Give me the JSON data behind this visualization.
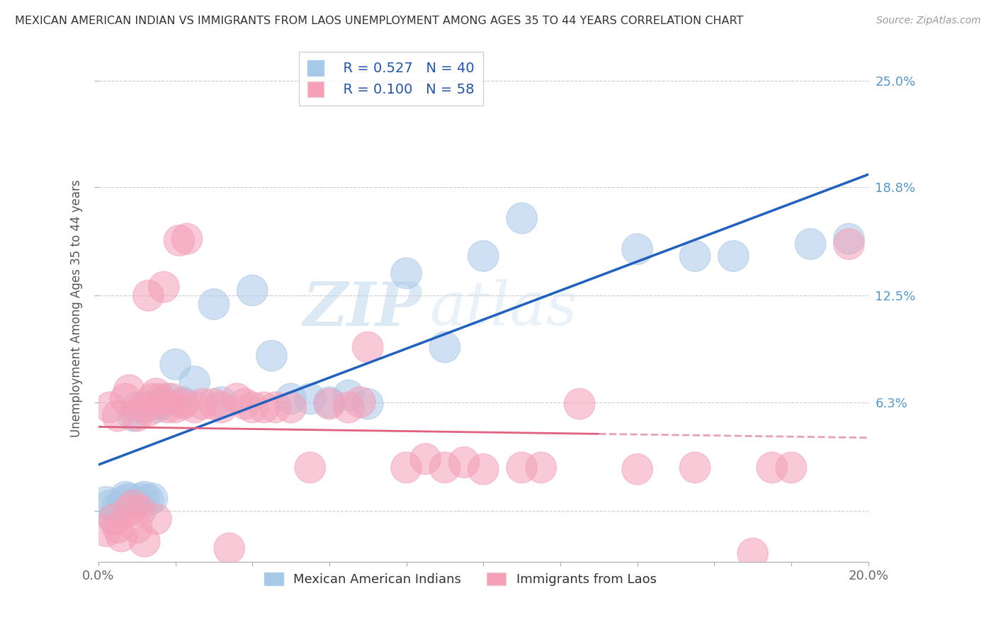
{
  "title": "MEXICAN AMERICAN INDIAN VS IMMIGRANTS FROM LAOS UNEMPLOYMENT AMONG AGES 35 TO 44 YEARS CORRELATION CHART",
  "source": "Source: ZipAtlas.com",
  "ylabel": "Unemployment Among Ages 35 to 44 years",
  "xlim": [
    0.0,
    0.2
  ],
  "ylim": [
    -0.03,
    0.265
  ],
  "plot_ylim": [
    0.0,
    0.25
  ],
  "ytick_vals": [
    0.0,
    0.063,
    0.125,
    0.188,
    0.25
  ],
  "ytick_labels": [
    "",
    "6.3%",
    "12.5%",
    "18.8%",
    "25.0%"
  ],
  "legend_R1": "R = 0.527",
  "legend_N1": "N = 40",
  "legend_R2": "R = 0.100",
  "legend_N2": "N = 58",
  "color_blue": "#a8c8e8",
  "color_pink": "#f4a0b8",
  "color_blue_line": "#2060c0",
  "color_pink_solid": "#e06080",
  "color_pink_dashed": "#e8a0b8",
  "watermark_color": "#c8dff0",
  "blue_x": [
    0.002,
    0.003,
    0.004,
    0.005,
    0.006,
    0.007,
    0.007,
    0.008,
    0.009,
    0.01,
    0.01,
    0.011,
    0.012,
    0.013,
    0.014,
    0.015,
    0.016,
    0.017,
    0.018,
    0.02,
    0.022,
    0.025,
    0.03,
    0.032,
    0.04,
    0.045,
    0.05,
    0.055,
    0.06,
    0.065,
    0.07,
    0.08,
    0.09,
    0.1,
    0.11,
    0.14,
    0.155,
    0.165,
    0.185,
    0.195
  ],
  "blue_y": [
    0.005,
    0.003,
    -0.005,
    0.002,
    0.004,
    0.006,
    0.008,
    0.007,
    0.055,
    0.005,
    0.06,
    0.007,
    0.008,
    0.006,
    0.007,
    0.06,
    0.062,
    0.063,
    0.065,
    0.085,
    0.063,
    0.075,
    0.12,
    0.063,
    0.128,
    0.09,
    0.065,
    0.065,
    0.063,
    0.067,
    0.062,
    0.138,
    0.095,
    0.148,
    0.17,
    0.152,
    0.148,
    0.148,
    0.155,
    0.158
  ],
  "pink_x": [
    0.002,
    0.003,
    0.004,
    0.005,
    0.005,
    0.006,
    0.007,
    0.008,
    0.008,
    0.009,
    0.01,
    0.01,
    0.011,
    0.012,
    0.012,
    0.013,
    0.013,
    0.014,
    0.015,
    0.015,
    0.016,
    0.017,
    0.018,
    0.019,
    0.02,
    0.021,
    0.022,
    0.023,
    0.025,
    0.027,
    0.03,
    0.032,
    0.034,
    0.036,
    0.038,
    0.04,
    0.043,
    0.046,
    0.05,
    0.055,
    0.06,
    0.065,
    0.068,
    0.07,
    0.08,
    0.085,
    0.09,
    0.095,
    0.1,
    0.11,
    0.115,
    0.125,
    0.14,
    0.155,
    0.17,
    0.175,
    0.18,
    0.195
  ],
  "pink_y": [
    -0.012,
    0.06,
    -0.005,
    -0.01,
    0.055,
    -0.015,
    0.065,
    0.0,
    0.07,
    0.003,
    -0.01,
    0.055,
    0.0,
    0.06,
    -0.018,
    0.125,
    0.058,
    0.065,
    -0.005,
    0.068,
    0.065,
    0.13,
    0.06,
    0.065,
    0.06,
    0.157,
    0.062,
    0.158,
    0.06,
    0.062,
    0.062,
    0.06,
    -0.022,
    0.065,
    0.062,
    0.06,
    0.06,
    0.06,
    0.06,
    0.025,
    0.062,
    0.06,
    0.063,
    0.095,
    0.025,
    0.03,
    0.025,
    0.028,
    0.024,
    0.025,
    0.025,
    0.062,
    0.024,
    0.025,
    -0.025,
    0.025,
    0.025,
    0.155
  ]
}
